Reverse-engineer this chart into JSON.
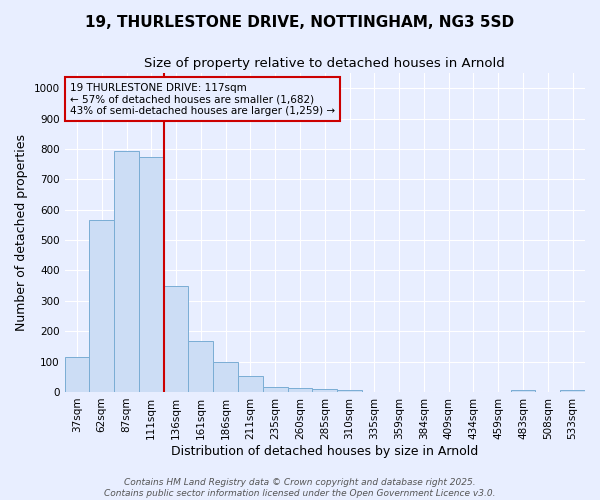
{
  "title_line1": "19, THURLESTONE DRIVE, NOTTINGHAM, NG3 5SD",
  "title_line2": "Size of property relative to detached houses in Arnold",
  "xlabel": "Distribution of detached houses by size in Arnold",
  "ylabel": "Number of detached properties",
  "categories": [
    "37sqm",
    "62sqm",
    "87sqm",
    "111sqm",
    "136sqm",
    "161sqm",
    "186sqm",
    "211sqm",
    "235sqm",
    "260sqm",
    "285sqm",
    "310sqm",
    "335sqm",
    "359sqm",
    "384sqm",
    "409sqm",
    "434sqm",
    "459sqm",
    "483sqm",
    "508sqm",
    "533sqm"
  ],
  "values": [
    115,
    565,
    795,
    775,
    350,
    168,
    97,
    52,
    15,
    12,
    10,
    8,
    0,
    0,
    0,
    0,
    0,
    0,
    6,
    0,
    7
  ],
  "bar_color": "#ccddf5",
  "bar_edge_color": "#7aadd4",
  "vline_x": 3.5,
  "vline_color": "#cc0000",
  "annotation_title": "19 THURLESTONE DRIVE: 117sqm",
  "annotation_line2": "← 57% of detached houses are smaller (1,682)",
  "annotation_line3": "43% of semi-detached houses are larger (1,259) →",
  "annotation_box_color": "#cc0000",
  "ylim": [
    0,
    1050
  ],
  "yticks": [
    0,
    100,
    200,
    300,
    400,
    500,
    600,
    700,
    800,
    900,
    1000
  ],
  "footer_line1": "Contains HM Land Registry data © Crown copyright and database right 2025.",
  "footer_line2": "Contains public sector information licensed under the Open Government Licence v3.0.",
  "bg_color": "#e8eeff",
  "grid_color": "#ffffff",
  "title_fontsize": 11,
  "subtitle_fontsize": 9.5,
  "tick_fontsize": 7.5,
  "axis_label_fontsize": 9,
  "footer_fontsize": 6.5
}
